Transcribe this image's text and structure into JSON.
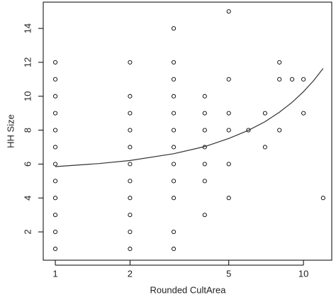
{
  "chart_data": {
    "type": "scatter",
    "xlabel": "Rounded CultArea",
    "ylabel": "HH Size",
    "xscale": "log",
    "xlim": [
      0.894,
      13.0
    ],
    "ylim": [
      0.33,
      15.55
    ],
    "xticks": [
      1,
      2,
      5,
      10
    ],
    "yticks": [
      2,
      4,
      6,
      8,
      10,
      12,
      14
    ],
    "series": [
      {
        "type": "scatter",
        "color": "#000000",
        "x": [
          1,
          1,
          1,
          1,
          1,
          1,
          1,
          1,
          1,
          1,
          1,
          1,
          2,
          2,
          2,
          2,
          2,
          2,
          2,
          2,
          2,
          2,
          2,
          3,
          3,
          3,
          3,
          3,
          3,
          3,
          3,
          3,
          3,
          3,
          3,
          4,
          4,
          4,
          4,
          4,
          4,
          4,
          5,
          5,
          5,
          5,
          5,
          5,
          6,
          7,
          7,
          8,
          8,
          8,
          9,
          10,
          10,
          12
        ],
        "values": [
          1,
          2,
          3,
          4,
          5,
          6,
          7,
          8,
          9,
          10,
          11,
          12,
          1,
          2,
          3,
          4,
          5,
          6,
          7,
          8,
          9,
          10,
          12,
          1,
          2,
          4,
          5,
          6,
          7,
          8,
          9,
          10,
          11,
          12,
          14,
          3,
          5,
          6,
          7,
          8,
          9,
          10,
          4,
          6,
          8,
          9,
          11,
          15,
          8,
          7,
          9,
          8,
          11,
          12,
          11,
          9,
          11,
          4
        ]
      },
      {
        "type": "line",
        "color": "#333333",
        "x": [
          1,
          1.5,
          2,
          3,
          4,
          5,
          6,
          7,
          8,
          9,
          10,
          11,
          12
        ],
        "values": [
          5.85,
          6.03,
          6.21,
          6.61,
          7.03,
          7.51,
          7.99,
          8.5,
          9.06,
          9.64,
          10.27,
          10.93,
          11.64
        ]
      }
    ]
  }
}
